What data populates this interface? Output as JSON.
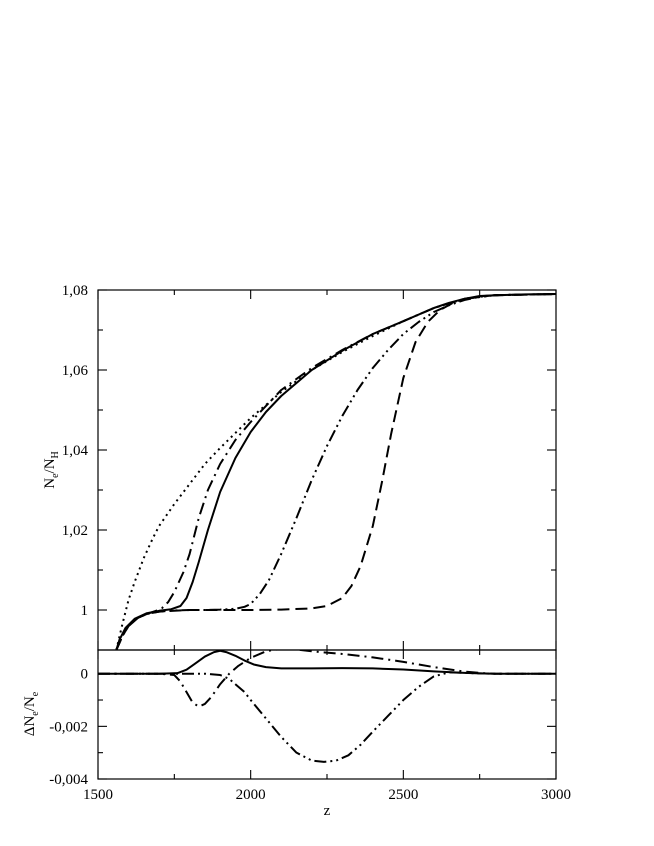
{
  "chart_data": [
    {
      "type": "line",
      "xlabel": "z",
      "ylabel_main": "N",
      "ylabel_sub1": "e",
      "ylabel_mid": "/N",
      "ylabel_sub2": "H",
      "xlim": [
        1500,
        3000
      ],
      "ylim": [
        0.99,
        1.08
      ],
      "xticks": [
        "1500",
        "2000",
        "2500",
        "3000"
      ],
      "yticks": [
        {
          "value": 1.0,
          "label": "1"
        },
        {
          "value": 1.02,
          "label": "1,02"
        },
        {
          "value": 1.04,
          "label": "1,04"
        },
        {
          "value": 1.06,
          "label": "1,06"
        },
        {
          "value": 1.08,
          "label": "1,08"
        }
      ],
      "grid": false,
      "series": [
        {
          "style": "solid",
          "x": [
            1560,
            1570,
            1590,
            1620,
            1660,
            1700,
            1740,
            1770,
            1790,
            1810,
            1830,
            1860,
            1900,
            1950,
            2000,
            2050,
            2100,
            2200,
            2300,
            2400,
            2500,
            2600,
            2650,
            2700,
            2750,
            2800,
            2900,
            3000
          ],
          "y": [
            0.99,
            0.9925,
            0.9955,
            0.9978,
            0.9992,
            0.9998,
            1.0002,
            1.001,
            1.003,
            1.007,
            1.012,
            1.02,
            1.0295,
            1.038,
            1.0445,
            1.0495,
            1.0535,
            1.06,
            1.0648,
            1.069,
            1.0722,
            1.0755,
            1.0768,
            1.0778,
            1.0785,
            1.0787,
            1.0789,
            1.079
          ]
        },
        {
          "style": "dotted",
          "x": [
            1560,
            1580,
            1600,
            1620,
            1650,
            1680,
            1700,
            1750,
            1800,
            1850,
            1900,
            2000,
            2100,
            2200,
            2300,
            2400,
            2500,
            2600,
            2700,
            2800,
            3000
          ],
          "y": [
            0.99,
            0.9965,
            1.0025,
            1.007,
            1.013,
            1.018,
            1.021,
            1.0265,
            1.0315,
            1.0365,
            1.0405,
            1.048,
            1.0545,
            1.06,
            1.0645,
            1.0685,
            1.0722,
            1.0755,
            1.0778,
            1.0787,
            1.079
          ]
        },
        {
          "style": "dash-dot",
          "x": [
            1560,
            1580,
            1600,
            1630,
            1660,
            1690,
            1710,
            1730,
            1750,
            1780,
            1800,
            1830,
            1860,
            1900,
            1950,
            2000,
            2100,
            2200,
            2300,
            2400,
            2500,
            2600,
            2700,
            2800,
            3000
          ],
          "y": [
            0.99,
            0.9935,
            0.996,
            0.998,
            0.999,
            0.9998,
            1.0005,
            1.002,
            1.0045,
            1.0095,
            1.014,
            1.023,
            1.03,
            1.0365,
            1.0425,
            1.047,
            1.055,
            1.0605,
            1.065,
            1.069,
            1.0722,
            1.0755,
            1.0778,
            1.0787,
            1.079
          ]
        },
        {
          "style": "dash-dot-dot",
          "x": [
            1560,
            1580,
            1600,
            1630,
            1660,
            1700,
            1750,
            1800,
            1850,
            1900,
            1950,
            1980,
            2000,
            2030,
            2060,
            2100,
            2150,
            2200,
            2250,
            2300,
            2350,
            2400,
            2450,
            2500,
            2550,
            2600,
            2650,
            2700,
            2750,
            2800,
            3000
          ],
          "y": [
            0.99,
            0.9935,
            0.996,
            0.998,
            0.999,
            0.9996,
            0.9999,
            1.0,
            1.0,
            1.0001,
            1.0003,
            1.0008,
            1.0015,
            1.004,
            1.0075,
            1.014,
            1.023,
            1.0325,
            1.041,
            1.0485,
            1.055,
            1.0605,
            1.065,
            1.069,
            1.072,
            1.0745,
            1.0762,
            1.0775,
            1.0783,
            1.0787,
            1.079
          ]
        },
        {
          "style": "dashed",
          "x": [
            1560,
            1580,
            1600,
            1630,
            1660,
            1700,
            1800,
            1900,
            2000,
            2100,
            2200,
            2250,
            2300,
            2330,
            2360,
            2400,
            2430,
            2460,
            2500,
            2540,
            2580,
            2620,
            2660,
            2700,
            2750,
            2800,
            3000
          ],
          "y": [
            0.99,
            0.9935,
            0.996,
            0.998,
            0.999,
            0.9996,
            1.0,
            1.0,
            1.0,
            1.0001,
            1.0004,
            1.001,
            1.003,
            1.006,
            1.011,
            1.021,
            1.032,
            1.044,
            1.058,
            1.067,
            1.072,
            1.075,
            1.0767,
            1.0778,
            1.0784,
            1.0787,
            1.079
          ]
        }
      ]
    },
    {
      "type": "line",
      "xlabel": "z",
      "ylabel_main": "ΔN",
      "ylabel_sub1": "e",
      "ylabel_mid": "/N",
      "ylabel_sub2": "e",
      "xlim": [
        1500,
        3000
      ],
      "ylim": [
        -0.004,
        0.0009
      ],
      "xticks": [
        "1500",
        "2000",
        "2500",
        "3000"
      ],
      "yticks": [
        {
          "value": 0,
          "label": "0"
        },
        {
          "value": -0.002,
          "label": "-0,002"
        },
        {
          "value": -0.004,
          "label": "-0,004"
        }
      ],
      "grid": false,
      "series": [
        {
          "style": "solid",
          "x": [
            1500,
            1700,
            1760,
            1790,
            1820,
            1850,
            1880,
            1900,
            1920,
            1950,
            1980,
            2010,
            2050,
            2100,
            2200,
            2300,
            2400,
            2500,
            2600,
            2700,
            2750,
            2800,
            3000
          ],
          "y": [
            0,
            0,
            2e-05,
            0.00015,
            0.0004,
            0.00065,
            0.00082,
            0.00087,
            0.00082,
            0.00068,
            0.0005,
            0.00035,
            0.00025,
            0.0002,
            0.0002,
            0.00021,
            0.0002,
            0.00016,
            9e-05,
            3e-05,
            1e-05,
            0,
            0
          ]
        },
        {
          "style": "dash-dot",
          "x": [
            1500,
            1700,
            1750,
            1770,
            1790,
            1810,
            1830,
            1850,
            1870,
            1900,
            1930,
            1960,
            2000,
            2050,
            2100,
            2150,
            2200,
            2300,
            2400,
            2500,
            2600,
            2700,
            2750,
            2800,
            3000
          ],
          "y": [
            0,
            0,
            -5e-05,
            -0.0003,
            -0.0007,
            -0.0011,
            -0.00125,
            -0.00115,
            -0.0009,
            -0.0004,
            0,
            0.0003,
            0.0006,
            0.00085,
            0.00095,
            0.00092,
            0.00085,
            0.00075,
            0.00062,
            0.00045,
            0.00025,
            8e-05,
            3e-05,
            0,
            0
          ]
        },
        {
          "style": "dash-dot-dot",
          "x": [
            1500,
            1850,
            1900,
            1930,
            1950,
            1980,
            2000,
            2050,
            2100,
            2150,
            2200,
            2240,
            2280,
            2320,
            2360,
            2400,
            2450,
            2500,
            2550,
            2600,
            2650,
            2700,
            2750,
            2800,
            3000
          ],
          "y": [
            0,
            0,
            -5e-05,
            -0.0002,
            -0.0004,
            -0.0007,
            -0.001,
            -0.0017,
            -0.0024,
            -0.003,
            -0.0033,
            -0.00335,
            -0.0033,
            -0.0031,
            -0.0027,
            -0.0022,
            -0.0016,
            -0.001,
            -0.0005,
            -0.0001,
            5e-05,
            3e-05,
            1e-05,
            0,
            0
          ]
        }
      ]
    }
  ]
}
